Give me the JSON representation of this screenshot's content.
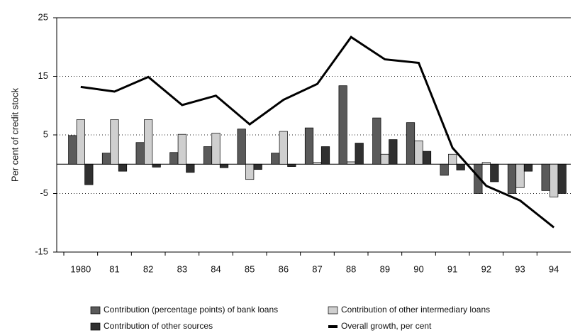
{
  "chart_data": {
    "type": "bar",
    "y_label": "Per cent of credit stock",
    "categories": [
      "1980",
      "81",
      "82",
      "83",
      "84",
      "85",
      "86",
      "87",
      "88",
      "89",
      "90",
      "91",
      "92",
      "93",
      "94"
    ],
    "series": [
      {
        "name": "Contribution (percentage points) of bank loans",
        "color": "#5a5a5a",
        "type": "bar",
        "values": [
          4.9,
          1.9,
          3.7,
          2.0,
          3.0,
          6.0,
          1.9,
          6.2,
          13.4,
          7.9,
          7.1,
          -1.9,
          -5.0,
          -5.0,
          -4.5
        ]
      },
      {
        "name": "Contribution of other intermediary loans",
        "color": "#cfcfcf",
        "type": "bar",
        "values": [
          7.6,
          7.6,
          7.6,
          5.1,
          5.3,
          -2.6,
          5.6,
          0.3,
          0.4,
          1.7,
          4.0,
          1.7,
          0.3,
          -4.0,
          -5.6
        ]
      },
      {
        "name": "Contribution of other sources",
        "color": "#303030",
        "type": "bar",
        "values": [
          -3.5,
          -1.2,
          -0.5,
          -1.4,
          -0.6,
          -0.9,
          -0.4,
          3.0,
          3.6,
          4.2,
          2.2,
          -1.0,
          -3.0,
          -1.2,
          -5.0
        ]
      },
      {
        "name": "Overall growth, per cent",
        "color": "#000000",
        "type": "line",
        "values": [
          13.2,
          12.4,
          14.9,
          10.1,
          11.7,
          6.8,
          11.0,
          13.7,
          21.7,
          17.9,
          17.3,
          2.8,
          -3.7,
          -6.2,
          -10.8
        ]
      }
    ],
    "ylim": [
      -15,
      25
    ],
    "yticks": [
      -15,
      -5,
      5,
      15,
      25
    ],
    "grid": true
  }
}
